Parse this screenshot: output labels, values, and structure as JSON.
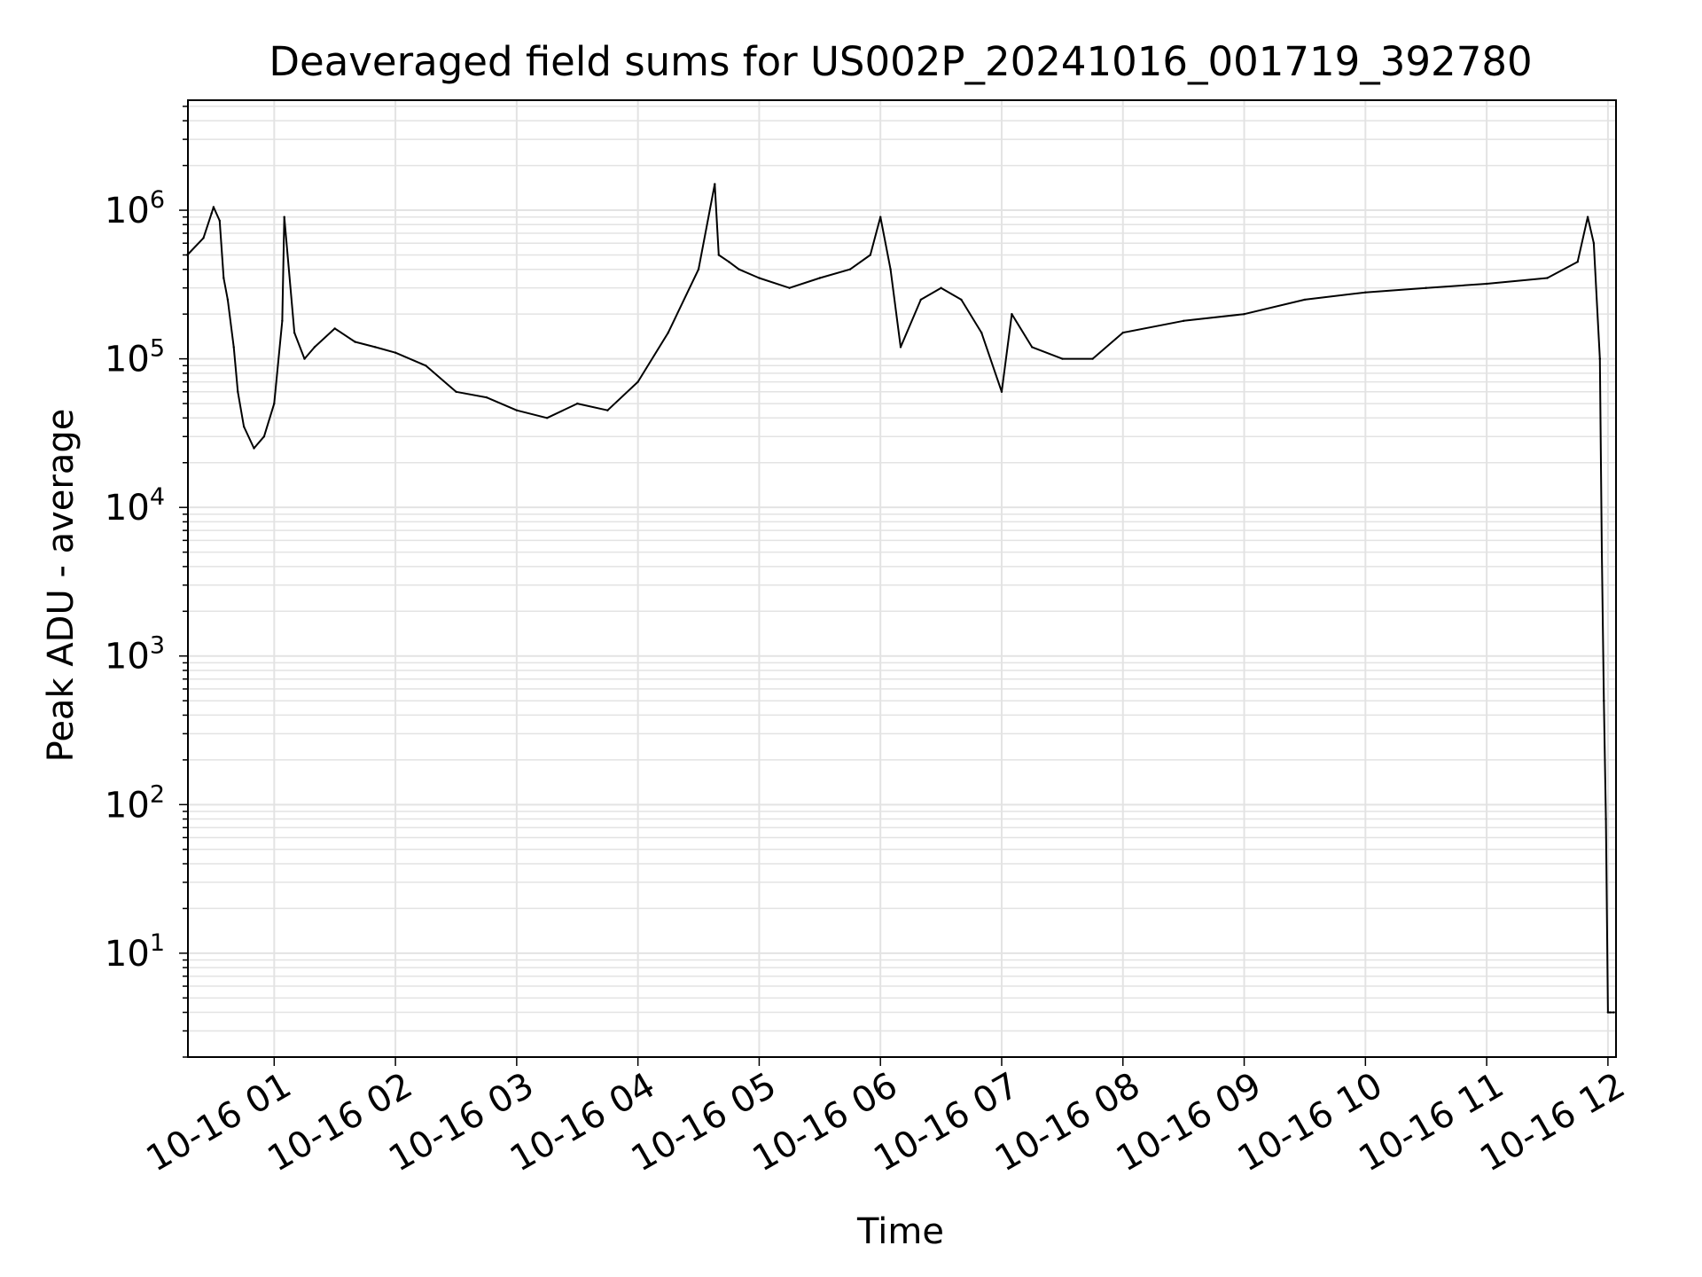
{
  "chart_data": {
    "type": "line",
    "title": "Deaveraged field sums for US002P_20241016_001719_392780",
    "xlabel": "Time",
    "ylabel": "Peak ADU - average",
    "y_scale": "log",
    "ylim": [
      2,
      5500000
    ],
    "xlim": [
      "10-16 00:17:19",
      "10-16 12:04:00"
    ],
    "x_ticks": [
      "10-16 01",
      "10-16 02",
      "10-16 03",
      "10-16 04",
      "10-16 05",
      "10-16 06",
      "10-16 07",
      "10-16 08",
      "10-16 09",
      "10-16 10",
      "10-16 11",
      "10-16 12"
    ],
    "y_ticks": [
      {
        "base": "10",
        "exp": "1",
        "value": 10
      },
      {
        "base": "10",
        "exp": "2",
        "value": 100
      },
      {
        "base": "10",
        "exp": "3",
        "value": 1000
      },
      {
        "base": "10",
        "exp": "4",
        "value": 10000
      },
      {
        "base": "10",
        "exp": "5",
        "value": 100000
      },
      {
        "base": "10",
        "exp": "6",
        "value": 1000000
      }
    ],
    "grid": true,
    "line_color": "#000000",
    "grid_color": "#e3e3e3",
    "series": [
      {
        "x": [
          "00:17",
          "00:25",
          "00:29",
          "00:30",
          "00:33",
          "00:35",
          "00:37",
          "00:40",
          "00:42",
          "00:45",
          "00:50",
          "00:55",
          "01:00",
          "01:04",
          "01:05",
          "01:10",
          "01:15",
          "01:20",
          "01:30",
          "01:40",
          "01:50",
          "02:00",
          "02:15",
          "02:30",
          "02:45",
          "03:00",
          "03:15",
          "03:30",
          "03:45",
          "04:00",
          "04:15",
          "04:30",
          "04:38",
          "04:40",
          "04:45",
          "04:50",
          "05:00",
          "05:15",
          "05:30",
          "05:45",
          "05:55",
          "06:00",
          "06:05",
          "06:10",
          "06:20",
          "06:30",
          "06:40",
          "06:50",
          "07:00",
          "07:05",
          "07:15",
          "07:30",
          "07:45",
          "08:00",
          "08:30",
          "09:00",
          "09:30",
          "10:00",
          "10:30",
          "11:00",
          "11:30",
          "11:45",
          "11:50",
          "11:53",
          "11:56",
          "11:57",
          "11:58",
          "11:59",
          "12:00",
          "12:01",
          "12:03"
        ],
        "y": [
          500000,
          650000,
          950000,
          1050000,
          850000,
          350000,
          250000,
          120000,
          60000,
          35000,
          25000,
          30000,
          50000,
          180000,
          900000,
          150000,
          100000,
          120000,
          160000,
          130000,
          120000,
          110000,
          90000,
          60000,
          55000,
          45000,
          40000,
          50000,
          45000,
          70000,
          150000,
          400000,
          1500000,
          500000,
          450000,
          400000,
          350000,
          300000,
          350000,
          400000,
          500000,
          900000,
          400000,
          120000,
          250000,
          300000,
          250000,
          150000,
          60000,
          200000,
          120000,
          100000,
          100000,
          150000,
          180000,
          200000,
          250000,
          280000,
          300000,
          320000,
          350000,
          450000,
          900000,
          600000,
          100000,
          5000,
          500,
          80,
          4,
          4,
          4
        ]
      }
    ]
  }
}
